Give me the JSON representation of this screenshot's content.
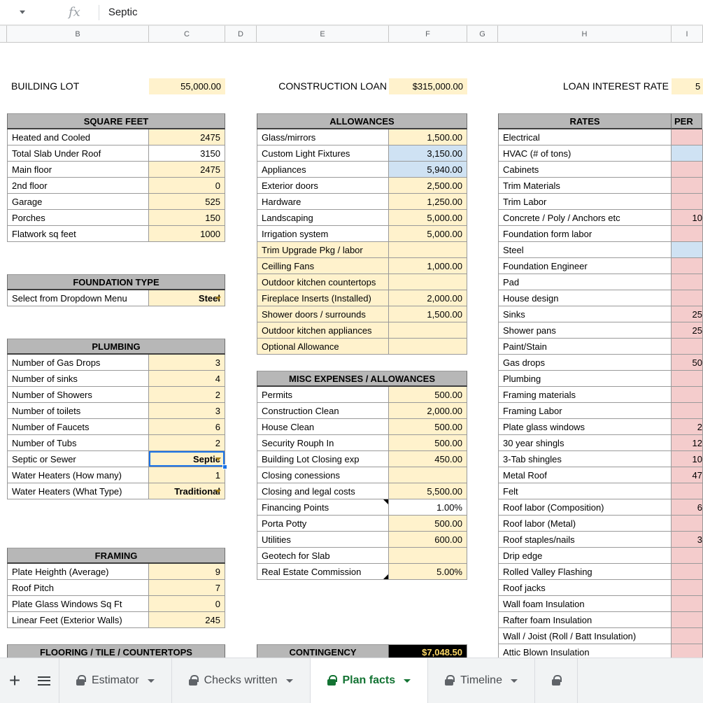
{
  "formula_bar": {
    "fx": "fx",
    "value": "Septic"
  },
  "columns": {
    "letters": [
      "",
      "B",
      "C",
      "D",
      "E",
      "F",
      "G",
      "H",
      "I"
    ]
  },
  "top_row": [
    {
      "label": "BUILDING LOT",
      "value": "55,000.00"
    },
    {
      "label": "CONSTRUCTION LOAN",
      "value": "$315,000.00"
    },
    {
      "label": "LOAN INTEREST RATE",
      "value": "5"
    }
  ],
  "colors": {
    "input_yellow": "#fff2cc",
    "info_blue": "#cfe2f3",
    "rate_pink": "#f4cccc",
    "section_header_gray": "#b7b7b7",
    "selection_blue": "#1a73e8",
    "active_tab_green": "#137333",
    "contingency_bg": "#000000",
    "contingency_text": "#ffd966"
  },
  "icons": {
    "add_sheet_icon": "+"
  },
  "groups": {
    "bc": [
      {
        "t": "header",
        "label": "SQUARE FEET"
      },
      {
        "t": "row",
        "label": "Heated and Cooled",
        "value": "2475",
        "vbg": "yellow"
      },
      {
        "t": "row",
        "label": "Total Slab Under Roof",
        "value": "3150",
        "vbg": "white"
      },
      {
        "t": "row",
        "label": "Main floor",
        "value": "2475",
        "vbg": "yellow"
      },
      {
        "t": "row",
        "label": "2nd floor",
        "value": "0",
        "vbg": "yellow"
      },
      {
        "t": "row",
        "label": "Garage",
        "value": "525",
        "vbg": "yellow"
      },
      {
        "t": "row",
        "label": "Porches",
        "value": "150",
        "vbg": "yellow"
      },
      {
        "t": "row",
        "label": "Flatwork sq feet",
        "value": "1000",
        "vbg": "yellow"
      },
      {
        "t": "blank"
      },
      {
        "t": "blank"
      },
      {
        "t": "header",
        "label": "FOUNDATION TYPE"
      },
      {
        "t": "dropdown",
        "label": "Select from Dropdown Menu",
        "value": "Steel",
        "vbg": "yellow"
      },
      {
        "t": "blank"
      },
      {
        "t": "blank"
      },
      {
        "t": "header",
        "label": "PLUMBING"
      },
      {
        "t": "row",
        "label": "Number of Gas Drops",
        "value": "3",
        "vbg": "yellow"
      },
      {
        "t": "row",
        "label": "Number of sinks",
        "value": "4",
        "vbg": "yellow"
      },
      {
        "t": "row",
        "label": "Number of Showers",
        "value": "2",
        "vbg": "yellow"
      },
      {
        "t": "row",
        "label": "Number of toilets",
        "value": "3",
        "vbg": "yellow"
      },
      {
        "t": "row",
        "label": "Number of Faucets",
        "value": "6",
        "vbg": "yellow"
      },
      {
        "t": "row",
        "label": "Number of Tubs",
        "value": "2",
        "vbg": "yellow"
      },
      {
        "t": "dropdown",
        "label": "Septic or Sewer",
        "value": "Septic",
        "vbg": "yellow",
        "selected": true
      },
      {
        "t": "row",
        "label": "Water Heaters (How many)",
        "value": "1",
        "vbg": "yellow"
      },
      {
        "t": "dropdown",
        "label": "Water Heaters (What Type)",
        "value": "Traditional",
        "vbg": "yellow"
      },
      {
        "t": "blank"
      },
      {
        "t": "blank"
      },
      {
        "t": "blank"
      },
      {
        "t": "header",
        "label": "FRAMING"
      },
      {
        "t": "row",
        "label": "Plate Heighth (Average)",
        "value": "9",
        "vbg": "yellow"
      },
      {
        "t": "row",
        "label": "Roof Pitch",
        "value": "7",
        "vbg": "yellow"
      },
      {
        "t": "row",
        "label": "Plate Glass Windows Sq Ft",
        "value": "0",
        "vbg": "yellow"
      },
      {
        "t": "row",
        "label": "Linear Feet (Exterior Walls)",
        "value": "245",
        "vbg": "yellow"
      },
      {
        "t": "blank"
      },
      {
        "t": "header",
        "label": "FLOORING / TILE / COUNTERTOPS"
      }
    ],
    "ef": [
      {
        "t": "header",
        "label": "ALLOWANCES"
      },
      {
        "t": "row",
        "label": "Glass/mirrors",
        "value": "1,500.00",
        "vbg": "yellow"
      },
      {
        "t": "row",
        "label": "Custom Light Fixtures",
        "value": "3,150.00",
        "vbg": "blue"
      },
      {
        "t": "row",
        "label": "Appliances",
        "value": "5,940.00",
        "vbg": "blue"
      },
      {
        "t": "row",
        "label": "Exterior doors",
        "value": "2,500.00",
        "vbg": "yellow"
      },
      {
        "t": "row",
        "label": "Hardware",
        "value": "1,250.00",
        "vbg": "yellow"
      },
      {
        "t": "row",
        "label": "Landscaping",
        "value": "5,000.00",
        "vbg": "yellow"
      },
      {
        "t": "row",
        "label": "Irrigation system",
        "value": "5,000.00",
        "vbg": "yellow"
      },
      {
        "t": "row",
        "label": "Trim Upgrade Pkg / labor",
        "value": "",
        "vbg": "yellow",
        "lbg": "yellow"
      },
      {
        "t": "row",
        "label": "Ceilling Fans",
        "value": "1,000.00",
        "vbg": "yellow",
        "lbg": "yellow"
      },
      {
        "t": "row",
        "label": "Outdoor kitchen countertops",
        "value": "",
        "vbg": "yellow",
        "lbg": "yellow"
      },
      {
        "t": "row",
        "label": "Fireplace Inserts (Installed)",
        "value": "2,000.00",
        "vbg": "yellow",
        "lbg": "yellow"
      },
      {
        "t": "row",
        "label": "Shower doors / surrounds",
        "value": "1,500.00",
        "vbg": "yellow",
        "lbg": "yellow"
      },
      {
        "t": "row",
        "label": "Outdoor kitchen appliances",
        "value": "",
        "vbg": "yellow",
        "lbg": "yellow"
      },
      {
        "t": "row",
        "label": "Optional Allowance",
        "value": "",
        "vbg": "yellow",
        "lbg": "yellow"
      },
      {
        "t": "blank"
      },
      {
        "t": "header",
        "label": "MISC EXPENSES / ALLOWANCES"
      },
      {
        "t": "row",
        "label": "Permits",
        "value": "500.00",
        "vbg": "yellow"
      },
      {
        "t": "row",
        "label": "Construction Clean",
        "value": "2,000.00",
        "vbg": "yellow"
      },
      {
        "t": "row",
        "label": "House Clean",
        "value": "500.00",
        "vbg": "yellow"
      },
      {
        "t": "row",
        "label": "Security Rouph In",
        "value": "500.00",
        "vbg": "yellow"
      },
      {
        "t": "row",
        "label": "Building Lot Closing exp",
        "value": "450.00",
        "vbg": "yellow"
      },
      {
        "t": "row",
        "label": "Closing conessions",
        "value": "",
        "vbg": "yellow"
      },
      {
        "t": "row",
        "label": "Closing and legal costs",
        "value": "5,500.00",
        "vbg": "yellow"
      },
      {
        "t": "row",
        "label": "Financing Points",
        "value": "1.00%",
        "vbg": "white",
        "note": "tr",
        "va": "center"
      },
      {
        "t": "row",
        "label": "Porta Potty",
        "value": "500.00",
        "vbg": "yellow"
      },
      {
        "t": "row",
        "label": "Utilities",
        "value": "600.00",
        "vbg": "yellow"
      },
      {
        "t": "row",
        "label": "Geotech for Slab",
        "value": "",
        "vbg": "yellow"
      },
      {
        "t": "row",
        "label": "Real Estate Commission",
        "value": "5.00%",
        "vbg": "yellow",
        "note": "br"
      },
      {
        "t": "blank"
      },
      {
        "t": "blank"
      },
      {
        "t": "blank"
      },
      {
        "t": "blank"
      },
      {
        "t": "contingency",
        "label": "CONTINGENCY",
        "value": "$7,048.50"
      }
    ],
    "hi": [
      {
        "t": "header2",
        "label": "RATES",
        "value": "PER"
      },
      {
        "t": "row",
        "label": "Electrical",
        "value": "",
        "vbg": "pink"
      },
      {
        "t": "row",
        "label": "HVAC (# of tons)",
        "value": "",
        "vbg": "blue"
      },
      {
        "t": "row",
        "label": "Cabinets",
        "value": "",
        "vbg": "pink"
      },
      {
        "t": "row",
        "label": "Trim Materials",
        "value": "",
        "vbg": "pink"
      },
      {
        "t": "row",
        "label": "Trim Labor",
        "value": "",
        "vbg": "pink"
      },
      {
        "t": "row",
        "label": "Concrete / Poly / Anchors etc",
        "value": "10",
        "vbg": "pink"
      },
      {
        "t": "row",
        "label": "Foundation form labor",
        "value": "",
        "vbg": "pink"
      },
      {
        "t": "row",
        "label": "Steel",
        "value": "",
        "vbg": "blue"
      },
      {
        "t": "row",
        "label": "Foundation Engineer",
        "value": "",
        "vbg": "pink"
      },
      {
        "t": "row",
        "label": "Pad",
        "value": "",
        "vbg": "pink"
      },
      {
        "t": "row",
        "label": "House design",
        "value": "",
        "vbg": "pink"
      },
      {
        "t": "row",
        "label": "Sinks",
        "value": "25",
        "vbg": "pink"
      },
      {
        "t": "row",
        "label": "Shower pans",
        "value": "25",
        "vbg": "pink"
      },
      {
        "t": "row",
        "label": "Paint/Stain",
        "value": "",
        "vbg": "pink"
      },
      {
        "t": "row",
        "label": "Gas drops",
        "value": "50",
        "vbg": "pink"
      },
      {
        "t": "row",
        "label": "Plumbing",
        "value": "",
        "vbg": "pink"
      },
      {
        "t": "row",
        "label": "Framing materials",
        "value": "",
        "vbg": "pink"
      },
      {
        "t": "row",
        "label": "Framing Labor",
        "value": "",
        "vbg": "pink"
      },
      {
        "t": "row",
        "label": "Plate glass windows",
        "value": "2",
        "vbg": "pink"
      },
      {
        "t": "row",
        "label": "30 year shingls",
        "value": "12",
        "vbg": "pink"
      },
      {
        "t": "row",
        "label": "3-Tab shingles",
        "value": "10",
        "vbg": "pink"
      },
      {
        "t": "row",
        "label": "Metal Roof",
        "value": "47",
        "vbg": "pink"
      },
      {
        "t": "row",
        "label": "Felt",
        "value": "",
        "vbg": "pink"
      },
      {
        "t": "row",
        "label": "Roof labor (Composition)",
        "value": "6",
        "vbg": "pink"
      },
      {
        "t": "row",
        "label": "Roof labor (Metal)",
        "value": "",
        "vbg": "pink"
      },
      {
        "t": "row",
        "label": "Roof staples/nails",
        "value": "3",
        "vbg": "pink"
      },
      {
        "t": "row",
        "label": "Drip edge",
        "value": "",
        "vbg": "pink"
      },
      {
        "t": "row",
        "label": "Rolled Valley Flashing",
        "value": "",
        "vbg": "pink"
      },
      {
        "t": "row",
        "label": "Roof jacks",
        "value": "",
        "vbg": "pink"
      },
      {
        "t": "row",
        "label": "Wall foam Insulation",
        "value": "",
        "vbg": "pink"
      },
      {
        "t": "row",
        "label": "Rafter foam Insulation",
        "value": "",
        "vbg": "pink"
      },
      {
        "t": "row",
        "label": "Wall / Joist (Roll / Batt Insulation)",
        "value": "",
        "vbg": "pink"
      },
      {
        "t": "row",
        "label": "Attic Blown Insulation",
        "value": "",
        "vbg": "pink"
      }
    ]
  },
  "sheet_tabs": {
    "tabs": [
      {
        "label": "Estimator",
        "locked": true,
        "active": false
      },
      {
        "label": "Checks written",
        "locked": true,
        "active": false
      },
      {
        "label": "Plan facts",
        "locked": true,
        "active": true
      },
      {
        "label": "Timeline",
        "locked": true,
        "active": false
      },
      {
        "label": "",
        "locked": true,
        "active": false
      }
    ]
  }
}
